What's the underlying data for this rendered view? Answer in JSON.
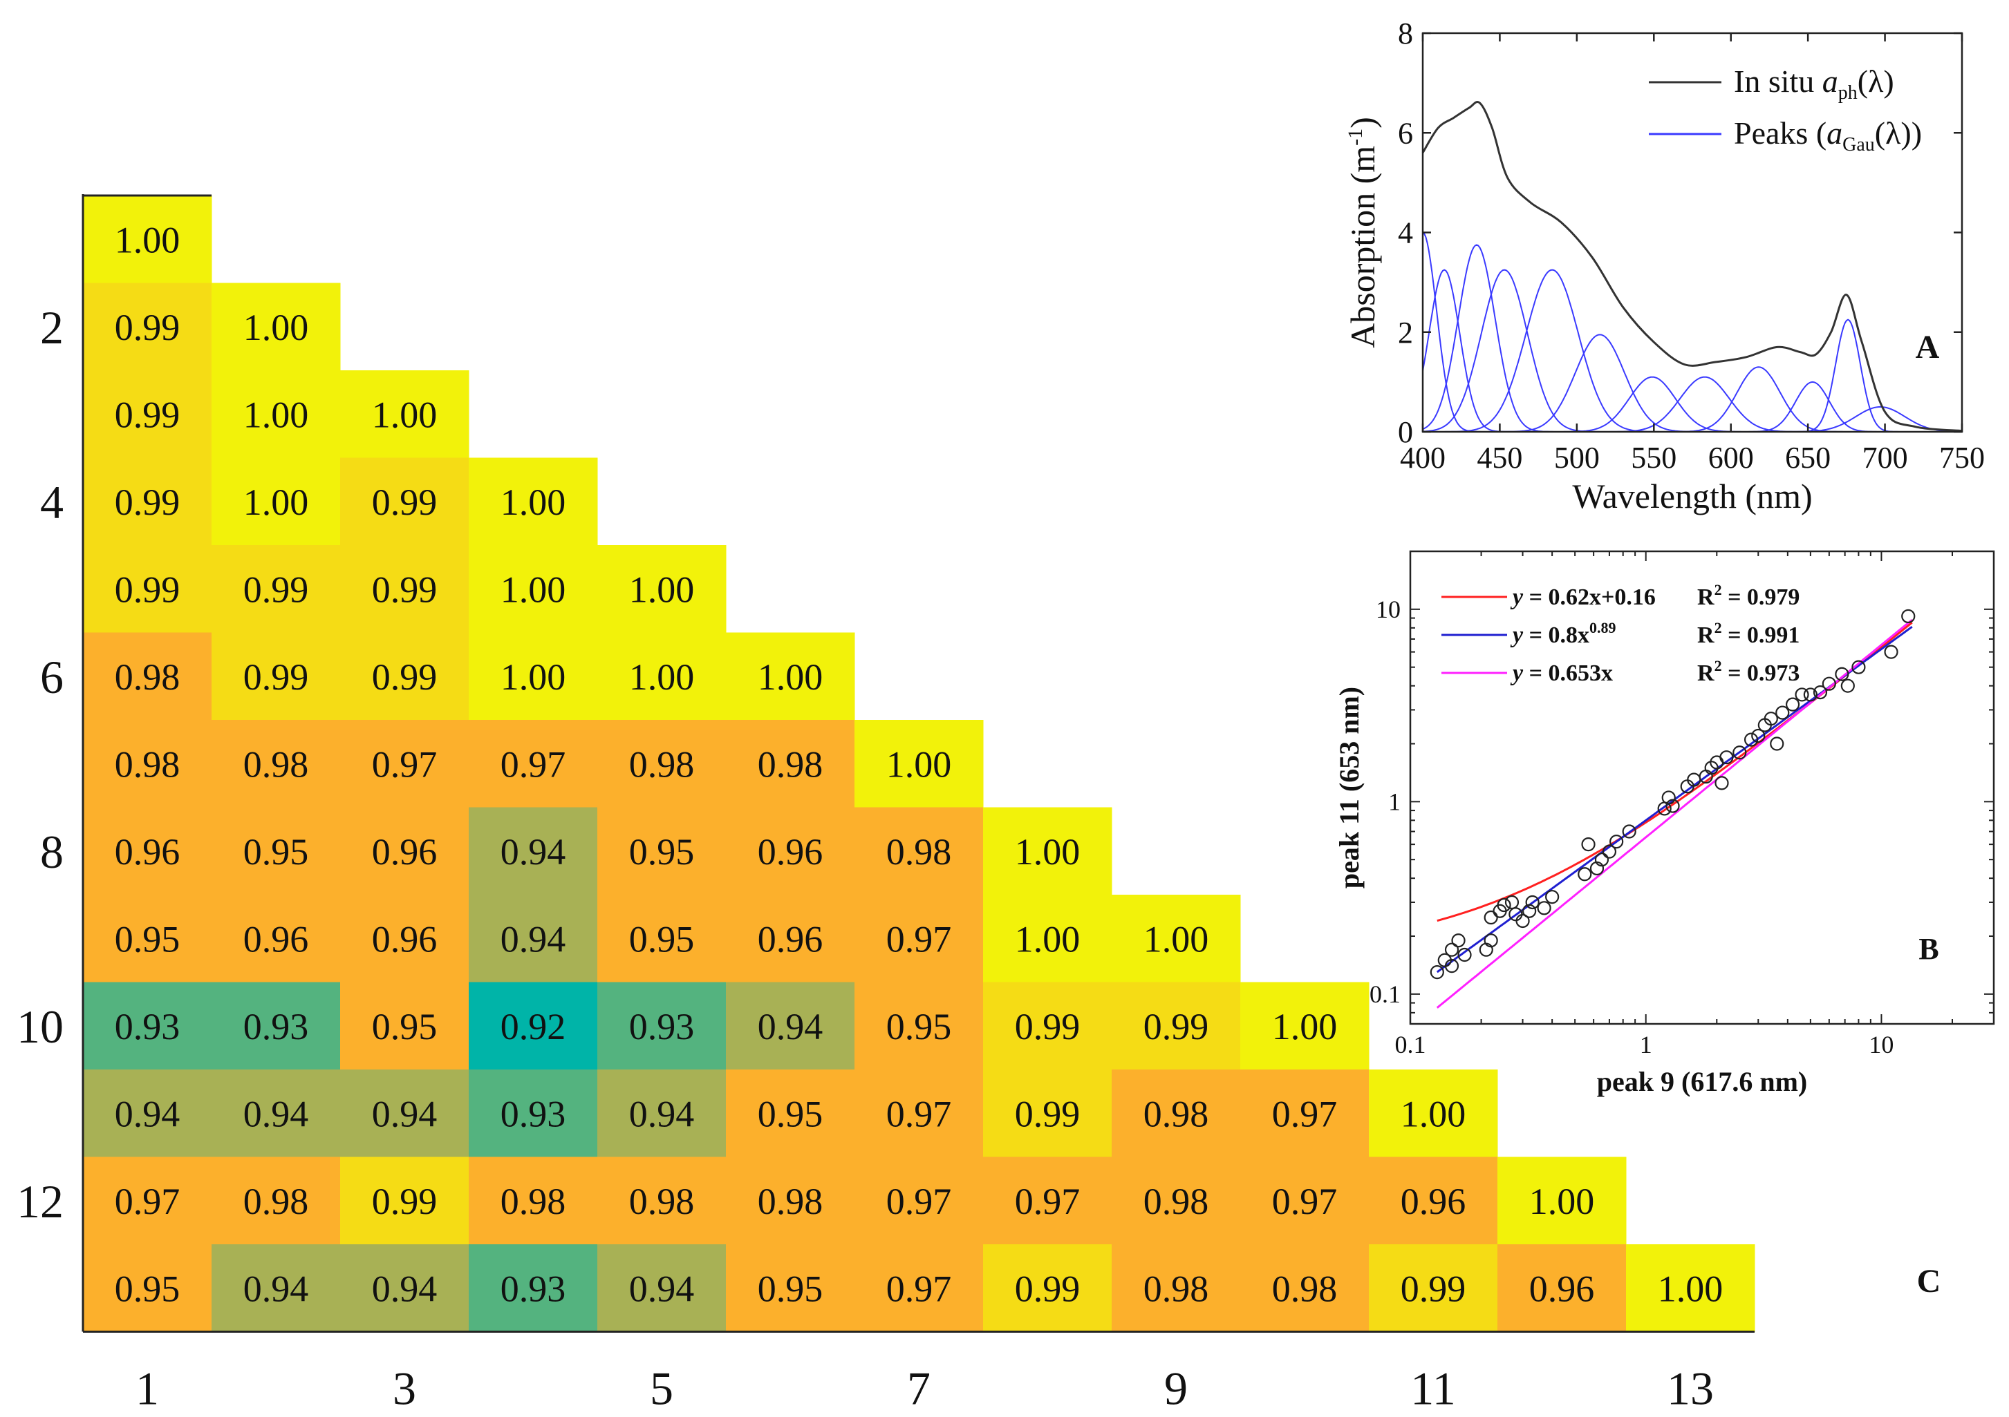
{
  "chart_data": [
    {
      "type": "heatmap",
      "title": "",
      "panel_label": "C",
      "x_tick_labels": [
        "1",
        "3",
        "5",
        "7",
        "9",
        "11",
        "13"
      ],
      "y_tick_labels": [
        "2",
        "4",
        "6",
        "8",
        "10",
        "12"
      ],
      "rows": [
        [
          "1.00"
        ],
        [
          "0.99",
          "1.00"
        ],
        [
          "0.99",
          "1.00",
          "1.00"
        ],
        [
          "0.99",
          "1.00",
          "0.99",
          "1.00"
        ],
        [
          "0.99",
          "0.99",
          "0.99",
          "1.00",
          "1.00"
        ],
        [
          "0.98",
          "0.99",
          "0.99",
          "1.00",
          "1.00",
          "1.00"
        ],
        [
          "0.98",
          "0.98",
          "0.97",
          "0.97",
          "0.98",
          "0.98",
          "1.00"
        ],
        [
          "0.96",
          "0.95",
          "0.96",
          "0.94",
          "0.95",
          "0.96",
          "0.98",
          "1.00"
        ],
        [
          "0.95",
          "0.96",
          "0.96",
          "0.94",
          "0.95",
          "0.96",
          "0.97",
          "1.00",
          "1.00"
        ],
        [
          "0.93",
          "0.93",
          "0.95",
          "0.92",
          "0.93",
          "0.94",
          "0.95",
          "0.99",
          "0.99",
          "1.00"
        ],
        [
          "0.94",
          "0.94",
          "0.94",
          "0.93",
          "0.94",
          "0.95",
          "0.97",
          "0.99",
          "0.98",
          "0.97",
          "1.00"
        ],
        [
          "0.97",
          "0.98",
          "0.99",
          "0.98",
          "0.98",
          "0.98",
          "0.97",
          "0.97",
          "0.98",
          "0.97",
          "0.96",
          "1.00"
        ],
        [
          "0.95",
          "0.94",
          "0.94",
          "0.93",
          "0.94",
          "0.95",
          "0.97",
          "0.99",
          "0.98",
          "0.98",
          "0.99",
          "0.96",
          "1.00"
        ]
      ],
      "colors": {
        "high": "#f2f20a",
        "mid": "#fcb02c",
        "low": "#00b4a8"
      }
    },
    {
      "type": "line",
      "panel_label": "A",
      "xlabel": "Wavelength (nm)",
      "ylabel": "Absorption (m",
      "ylabel_sup": "-1",
      "ylabel_close": ")",
      "xlim": [
        400,
        750
      ],
      "ylim": [
        0,
        8
      ],
      "x_ticks": [
        400,
        450,
        500,
        550,
        600,
        650,
        700,
        750
      ],
      "y_ticks": [
        0,
        2,
        4,
        6,
        8
      ],
      "legend": [
        {
          "name": "In situ ",
          "italic": "a",
          "sub": "ph",
          "tail": "(λ)",
          "color": "#333333"
        },
        {
          "name": "Peaks (",
          "italic": "a",
          "sub": "Gau",
          "tail": "(λ))",
          "color": "#3a3aff"
        }
      ],
      "series_total": {
        "x": [
          400,
          410,
          420,
          430,
          437,
          445,
          455,
          470,
          490,
          510,
          530,
          550,
          570,
          590,
          610,
          630,
          645,
          655,
          665,
          675,
          685,
          700,
          720,
          750
        ],
        "y": [
          5.6,
          6.1,
          6.3,
          6.5,
          6.6,
          6.1,
          5.1,
          4.6,
          4.2,
          3.5,
          2.5,
          1.8,
          1.35,
          1.4,
          1.5,
          1.7,
          1.6,
          1.55,
          2.0,
          2.75,
          1.8,
          0.4,
          0.1,
          0.02
        ]
      },
      "gaussian_peaks": [
        {
          "center": 400,
          "height": 4.0,
          "sigma": 9
        },
        {
          "center": 414,
          "height": 3.25,
          "sigma": 10
        },
        {
          "center": 435,
          "height": 3.75,
          "sigma": 12
        },
        {
          "center": 453,
          "height": 3.25,
          "sigma": 15
        },
        {
          "center": 484,
          "height": 3.25,
          "sigma": 17
        },
        {
          "center": 515,
          "height": 1.95,
          "sigma": 16
        },
        {
          "center": 549,
          "height": 1.1,
          "sigma": 15
        },
        {
          "center": 583,
          "height": 1.1,
          "sigma": 16
        },
        {
          "center": 618,
          "height": 1.3,
          "sigma": 14
        },
        {
          "center": 653,
          "height": 1.0,
          "sigma": 11
        },
        {
          "center": 676,
          "height": 2.25,
          "sigma": 8
        },
        {
          "center": 697,
          "height": 0.5,
          "sigma": 16
        }
      ]
    },
    {
      "type": "scatter",
      "panel_label": "B",
      "xlabel": "peak 9 (617.6 nm)",
      "ylabel": "peak 11 (653 nm)",
      "xscale": "log",
      "yscale": "log",
      "xlim": [
        0.1,
        30
      ],
      "ylim": [
        0.07,
        20
      ],
      "x_ticks": [
        0.1,
        1,
        10
      ],
      "x_tick_labels": [
        "0.1",
        "1",
        "10"
      ],
      "y_ticks": [
        0.1,
        1,
        10
      ],
      "y_tick_labels": [
        "0.1",
        "1",
        "10"
      ],
      "fits": [
        {
          "name": "linear",
          "label_y": "y",
          "eq": " = 0.62x+0.16",
          "sup": "",
          "r2": "R",
          "r2sup": "2",
          "r2val": " = 0.979",
          "color": "#ff2020",
          "kind": "linear",
          "a": 0.62,
          "b": 0.16
        },
        {
          "name": "power",
          "label_y": "y",
          "eq": " = 0.8x",
          "sup": "0.89",
          "r2": "R",
          "r2sup": "2",
          "r2val": " = 0.991",
          "color": "#1f1fd0",
          "kind": "power",
          "a": 0.8,
          "b": 0.89
        },
        {
          "name": "proportional",
          "label_y": "y",
          "eq": " = 0.653x",
          "sup": "",
          "r2": "R",
          "r2sup": "2",
          "r2val": " = 0.973",
          "color": "#ff20ff",
          "kind": "linear",
          "a": 0.653,
          "b": 0.0
        }
      ],
      "points": [
        [
          0.13,
          0.13
        ],
        [
          0.14,
          0.15
        ],
        [
          0.15,
          0.14
        ],
        [
          0.16,
          0.19
        ],
        [
          0.15,
          0.17
        ],
        [
          0.17,
          0.16
        ],
        [
          0.21,
          0.17
        ],
        [
          0.22,
          0.19
        ],
        [
          0.22,
          0.25
        ],
        [
          0.24,
          0.27
        ],
        [
          0.25,
          0.29
        ],
        [
          0.27,
          0.3
        ],
        [
          0.28,
          0.26
        ],
        [
          0.3,
          0.24
        ],
        [
          0.32,
          0.27
        ],
        [
          0.33,
          0.3
        ],
        [
          0.37,
          0.28
        ],
        [
          0.4,
          0.32
        ],
        [
          0.55,
          0.42
        ],
        [
          0.57,
          0.6
        ],
        [
          0.62,
          0.45
        ],
        [
          0.65,
          0.5
        ],
        [
          0.7,
          0.55
        ],
        [
          0.75,
          0.62
        ],
        [
          0.85,
          0.7
        ],
        [
          1.2,
          0.92
        ],
        [
          1.25,
          1.05
        ],
        [
          1.3,
          0.95
        ],
        [
          1.5,
          1.2
        ],
        [
          1.6,
          1.3
        ],
        [
          1.8,
          1.35
        ],
        [
          1.9,
          1.5
        ],
        [
          2.0,
          1.6
        ],
        [
          2.1,
          1.25
        ],
        [
          2.2,
          1.7
        ],
        [
          2.5,
          1.8
        ],
        [
          2.8,
          2.1
        ],
        [
          3.0,
          2.2
        ],
        [
          3.2,
          2.5
        ],
        [
          3.4,
          2.7
        ],
        [
          3.6,
          2.0
        ],
        [
          3.8,
          2.9
        ],
        [
          4.2,
          3.2
        ],
        [
          4.6,
          3.6
        ],
        [
          5.0,
          3.6
        ],
        [
          5.5,
          3.7
        ],
        [
          6.0,
          4.1
        ],
        [
          6.8,
          4.6
        ],
        [
          7.2,
          4.0
        ],
        [
          8.0,
          5.0
        ],
        [
          11.0,
          6.0
        ],
        [
          13.0,
          9.2
        ]
      ]
    }
  ]
}
